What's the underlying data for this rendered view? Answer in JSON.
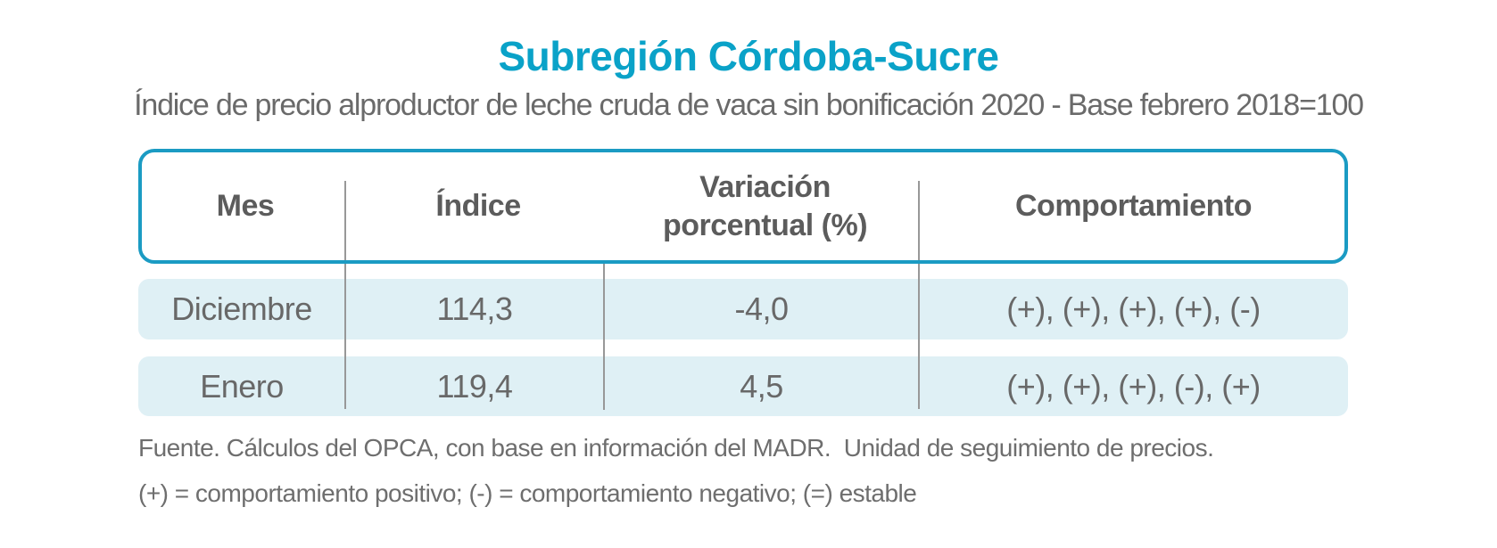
{
  "title": "Subregión Córdoba-Sucre",
  "subtitle": "Índice de precio alproductor de leche cruda de vaca sin bonificación 2020 - Base febrero 2018=100",
  "colors": {
    "accent_cyan": "#0aa2c8",
    "table_border_teal": "#1b9bc3",
    "row_background": "#dff0f5",
    "text_gray": "#686868",
    "divider_gray": "#989898"
  },
  "table": {
    "columns": [
      "Mes",
      "Índice",
      "Variación porcentual (%)",
      "Comportamiento"
    ],
    "rows": [
      {
        "mes": "Diciembre",
        "indice": "114,3",
        "variacion": "-4,0",
        "comportamiento": "(+), (+), (+), (+), (-)"
      },
      {
        "mes": "Enero",
        "indice": "119,4",
        "variacion": "4,5",
        "comportamiento": "(+), (+), (+), (-), (+)"
      }
    ]
  },
  "footnotes": {
    "source": "Fuente. Cálculos del OPCA, con base en información del MADR.  Unidad de seguimiento de precios.",
    "legend": "(+) = comportamiento positivo; (-) = comportamiento negativo; (=) estable"
  },
  "chart_data": {
    "type": "table",
    "title": "Subregión Córdoba-Sucre",
    "subtitle": "Índice de precio alproductor de leche cruda de vaca sin bonificación 2020 - Base febrero 2018=100",
    "columns": [
      "Mes",
      "Índice",
      "Variación porcentual (%)",
      "Comportamiento"
    ],
    "rows": [
      [
        "Diciembre",
        114.3,
        -4.0,
        "(+), (+), (+), (+), (-)"
      ],
      [
        "Enero",
        119.4,
        4.5,
        "(+), (+), (+), (-), (+)"
      ]
    ],
    "notes": [
      "Fuente. Cálculos del OPCA, con base en información del MADR.  Unidad de seguimiento de precios.",
      "(+) = comportamiento positivo; (-) = comportamiento negativo; (=) estable"
    ],
    "base_period": "febrero 2018=100"
  }
}
